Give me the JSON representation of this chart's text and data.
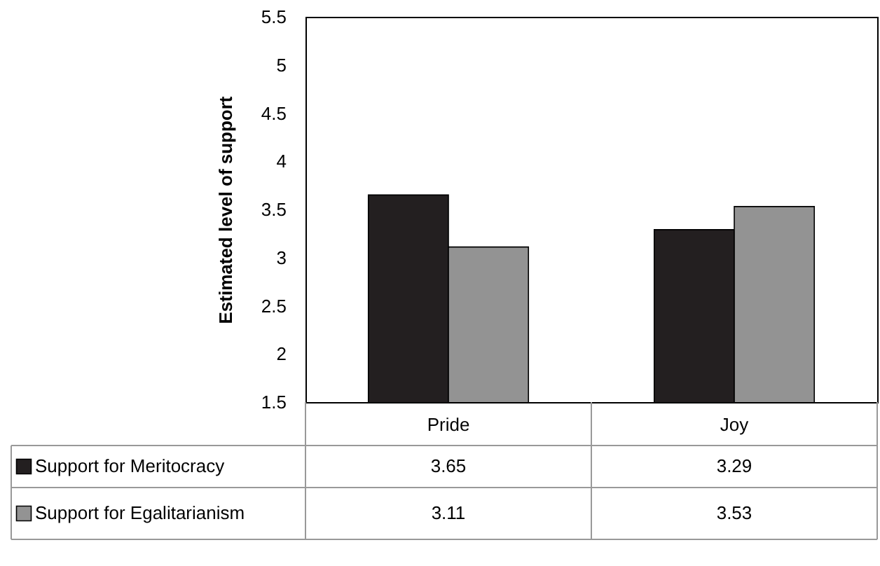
{
  "chart_data": {
    "type": "bar",
    "ylabel": "Estimated level of support",
    "categories": [
      "Pride",
      "Joy"
    ],
    "series": [
      {
        "name": "Support for Meritocracy",
        "color": "#231f20",
        "values": [
          3.65,
          3.29
        ]
      },
      {
        "name": "Support for Egalitarianism",
        "color": "#939393",
        "values": [
          3.11,
          3.53
        ]
      }
    ],
    "ylim": [
      1.5,
      5.5
    ],
    "yticks": [
      1.5,
      2,
      2.5,
      3,
      3.5,
      4,
      4.5,
      5,
      5.5
    ],
    "grid": false,
    "legend": "bottom left",
    "data_labels": true
  }
}
